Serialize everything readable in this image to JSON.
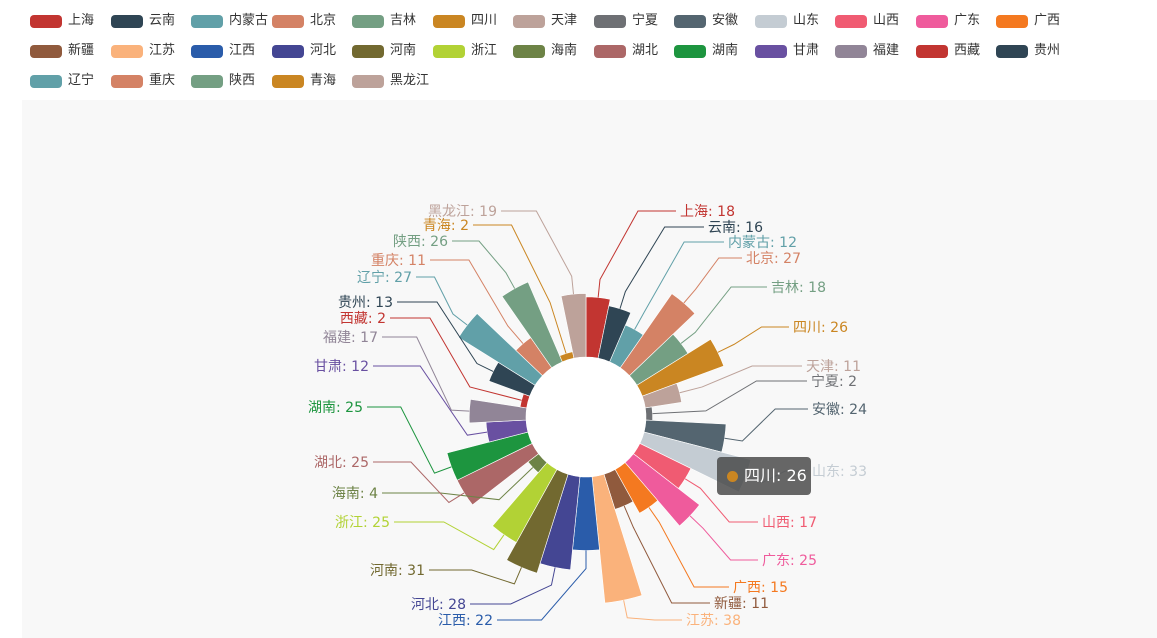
{
  "chart_data": {
    "type": "pie",
    "subtype": "rose",
    "legend_position": "top-left",
    "categories": [
      "上海",
      "云南",
      "内蒙古",
      "北京",
      "吉林",
      "四川",
      "天津",
      "宁夏",
      "安徽",
      "山东",
      "山西",
      "广东",
      "广西",
      "新疆",
      "江苏",
      "江西",
      "河北",
      "河南",
      "浙江",
      "海南",
      "湖北",
      "湖南",
      "甘肃",
      "福建",
      "西藏",
      "贵州",
      "辽宁",
      "重庆",
      "陕西",
      "青海",
      "黑龙江"
    ],
    "values": [
      18,
      16,
      12,
      27,
      18,
      26,
      11,
      2,
      24,
      33,
      17,
      25,
      15,
      11,
      38,
      22,
      28,
      31,
      25,
      4,
      25,
      25,
      12,
      17,
      2,
      13,
      27,
      11,
      26,
      2,
      19
    ],
    "colors": [
      "#c23531",
      "#2f4554",
      "#61a0a8",
      "#d48265",
      "#749f83",
      "#ca8622",
      "#bda29a",
      "#6e7074",
      "#546570",
      "#c4ccd3",
      "#f05b72",
      "#ef5b9c",
      "#f47920",
      "#905a3d",
      "#fab27b",
      "#2a5caa",
      "#444693",
      "#726930",
      "#b2d235",
      "#6d8346",
      "#ac6767",
      "#1d953f",
      "#6950a1",
      "#918597",
      "#c23531",
      "#2f4554",
      "#61a0a8",
      "#d48265",
      "#749f83",
      "#ca8622",
      "#bda29a"
    ],
    "labels": [
      "上海: 18",
      "云南: 16",
      "内蒙古: 12",
      "北京: 27",
      "吉林: 18",
      "四川: 26",
      "天津: 11",
      "宁夏: 2",
      "安徽: 24",
      "山东: 33",
      "山西: 17",
      "广东: 25",
      "广西: 15",
      "新疆: 11",
      "江苏: 38",
      "江西: 22",
      "河北: 28",
      "河南: 31",
      "浙江: 25",
      "海南: 4",
      "湖北: 25",
      "湖南: 25",
      "甘肃: 12",
      "福建: 17",
      "西藏: 2",
      "贵州: 13",
      "辽宁: 27",
      "重庆: 11",
      "陕西: 26",
      "青海: 2",
      "黑龙江: 19"
    ]
  },
  "tooltip": {
    "label": "四川: 26",
    "color": "#ca8622"
  }
}
